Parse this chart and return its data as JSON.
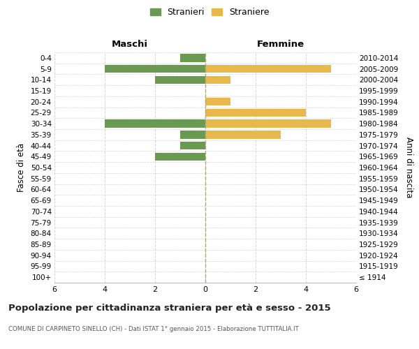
{
  "age_groups": [
    "100+",
    "95-99",
    "90-94",
    "85-89",
    "80-84",
    "75-79",
    "70-74",
    "65-69",
    "60-64",
    "55-59",
    "50-54",
    "45-49",
    "40-44",
    "35-39",
    "30-34",
    "25-29",
    "20-24",
    "15-19",
    "10-14",
    "5-9",
    "0-4"
  ],
  "birth_years": [
    "≤ 1914",
    "1915-1919",
    "1920-1924",
    "1925-1929",
    "1930-1934",
    "1935-1939",
    "1940-1944",
    "1945-1949",
    "1950-1954",
    "1955-1959",
    "1960-1964",
    "1965-1969",
    "1970-1974",
    "1975-1979",
    "1980-1984",
    "1985-1989",
    "1990-1994",
    "1995-1999",
    "2000-2004",
    "2005-2009",
    "2010-2014"
  ],
  "maschi": [
    0,
    0,
    0,
    0,
    0,
    0,
    0,
    0,
    0,
    0,
    0,
    2,
    1,
    1,
    4,
    0,
    0,
    0,
    2,
    4,
    1
  ],
  "femmine": [
    0,
    0,
    0,
    0,
    0,
    0,
    0,
    0,
    0,
    0,
    0,
    0,
    0,
    3,
    5,
    4,
    1,
    0,
    1,
    5,
    0
  ],
  "color_maschi": "#6a9a52",
  "color_femmine": "#e8b84b",
  "title_main": "Popolazione per cittadinanza straniera per età e sesso - 2015",
  "title_sub": "COMUNE DI CARPINETO SINELLO (CH) - Dati ISTAT 1° gennaio 2015 - Elaborazione TUTTITALIA.IT",
  "label_maschi": "Stranieri",
  "label_femmine": "Straniere",
  "label_left": "Maschi",
  "label_right": "Femmine",
  "ylabel_left": "Fasce di età",
  "ylabel_right": "Anni di nascita",
  "xlim": 6,
  "background_color": "#ffffff",
  "grid_color": "#d5d5d5"
}
